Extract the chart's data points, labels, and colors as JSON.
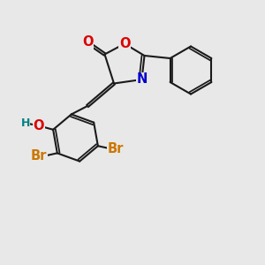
{
  "bg_color": "#e8e8e8",
  "bond_color": "#1a1a1a",
  "oxygen_color": "#dd0000",
  "nitrogen_color": "#0000cc",
  "bromine_color": "#cc7700",
  "teal_color": "#008080",
  "bond_lw": 1.5,
  "xlim": [
    0,
    10
  ],
  "ylim": [
    0,
    10
  ],
  "font_size": 10.5
}
